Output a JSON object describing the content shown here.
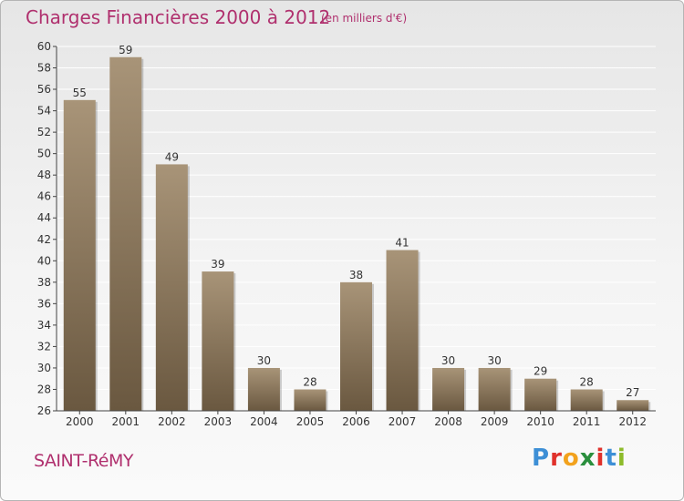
{
  "header": {
    "title": "Charges Financières 2000 à 2012",
    "unit": "(en milliers d'€)"
  },
  "footer": {
    "place": "SAINT-RéMY",
    "brand_letters": [
      "P",
      "r",
      "o",
      "x",
      "i",
      "t",
      "i"
    ],
    "brand_colors": [
      "#3d8fd6",
      "#e0312b",
      "#f2a21d",
      "#2a8f3d",
      "#e0312b",
      "#3d8fd6",
      "#8dbb2a"
    ]
  },
  "colors": {
    "title": "#b0306e",
    "bar_top": "#a89478",
    "bar_bottom": "#6a5840",
    "grid": "#ffffff"
  },
  "chart_data": {
    "type": "bar",
    "categories": [
      "2000",
      "2001",
      "2002",
      "2003",
      "2004",
      "2005",
      "2006",
      "2007",
      "2008",
      "2009",
      "2010",
      "2011",
      "2012"
    ],
    "values": [
      55,
      59,
      49,
      39,
      30,
      28,
      38,
      41,
      30,
      30,
      29,
      28,
      27
    ],
    "ylim": [
      26,
      60
    ],
    "yticks": [
      26,
      28,
      30,
      32,
      34,
      36,
      38,
      40,
      42,
      44,
      46,
      48,
      50,
      52,
      54,
      56,
      58,
      60
    ],
    "grid": true,
    "data_labels": true
  }
}
